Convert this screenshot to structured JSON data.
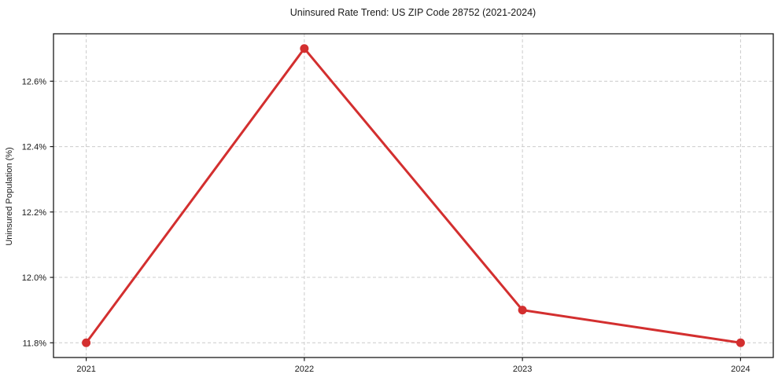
{
  "page": {
    "background_color": "#ffffff"
  },
  "chart_data": {
    "type": "line",
    "title": "Uninsured Rate Trend: US ZIP Code 28752 (2021-2024)",
    "xlabel": "",
    "ylabel": "Uninsured Population (%)",
    "x": [
      2021,
      2022,
      2023,
      2024
    ],
    "x_tick_labels": [
      "2021",
      "2022",
      "2023",
      "2024"
    ],
    "series": [
      {
        "name": "Uninsured Population (%)",
        "values": [
          11.8,
          12.7,
          11.9,
          11.8
        ]
      }
    ],
    "y_ticks": [
      11.8,
      12.0,
      12.2,
      12.4,
      12.6
    ],
    "y_tick_labels": [
      "11.8%",
      "12.0%",
      "12.2%",
      "12.4%",
      "12.6%"
    ],
    "xlim": [
      2020.85,
      2024.15
    ],
    "ylim": [
      11.755,
      12.745
    ],
    "grid": true,
    "grid_style": "dashed",
    "legend_position": "none",
    "colors": {
      "line": "#d32f2f",
      "marker": "#d32f2f",
      "grid": "#cccccc",
      "spine": "#1a1a1a",
      "tick": "#1a1a1a",
      "text": "#1a1a1a",
      "plot_background": "#ffffff"
    },
    "style": {
      "line_width": 3,
      "marker_radius": 5.5,
      "marker_shape": "circle"
    }
  }
}
